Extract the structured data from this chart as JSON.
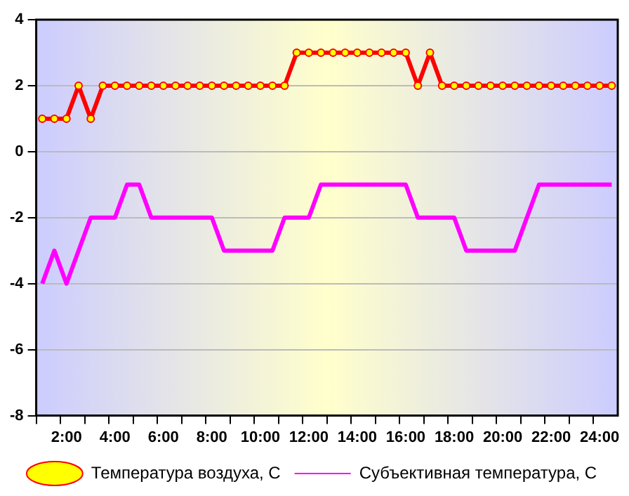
{
  "chart_data": {
    "type": "line",
    "categories": [
      null,
      null,
      "2:00",
      null,
      null,
      null,
      "4:00",
      null,
      null,
      null,
      "6:00",
      null,
      null,
      null,
      "8:00",
      null,
      null,
      null,
      "10:00",
      null,
      null,
      null,
      "12:00",
      null,
      null,
      null,
      "14:00",
      null,
      null,
      null,
      "16:00",
      null,
      null,
      null,
      "18:00",
      null,
      null,
      null,
      "20:00",
      null,
      null,
      null,
      "22:00",
      null,
      null,
      null,
      "24:00",
      null
    ],
    "series": [
      {
        "name": "Температура воздуха, С",
        "color": "#ff0000",
        "marker": "circle",
        "values": [
          1,
          1,
          1,
          2,
          1,
          2,
          2,
          2,
          2,
          2,
          2,
          2,
          2,
          2,
          2,
          2,
          2,
          2,
          2,
          2,
          2,
          3,
          3,
          3,
          3,
          3,
          3,
          3,
          3,
          3,
          3,
          2,
          3,
          2,
          2,
          2,
          2,
          2,
          2,
          2,
          2,
          2,
          2,
          2,
          2,
          2,
          2,
          2
        ]
      },
      {
        "name": "Субъективная температура, С",
        "color": "#ff00ff",
        "marker": "none",
        "values": [
          -4,
          -3,
          -4,
          -3,
          -2,
          -2,
          -2,
          -1,
          -1,
          -2,
          -2,
          -2,
          -2,
          -2,
          -2,
          -3,
          -3,
          -3,
          -3,
          -3,
          -2,
          -2,
          -2,
          -1,
          -1,
          -1,
          -1,
          -1,
          -1,
          -1,
          -1,
          -2,
          -2,
          -2,
          -2,
          -3,
          -3,
          -3,
          -3,
          -3,
          -2,
          -1,
          -1,
          -1,
          -1,
          -1,
          -1,
          -1
        ]
      }
    ],
    "ylim": [
      -8,
      4
    ],
    "yticks": [
      -8,
      -6,
      -4,
      -2,
      0,
      2,
      4
    ],
    "grid": "y",
    "legend": "bottom"
  }
}
